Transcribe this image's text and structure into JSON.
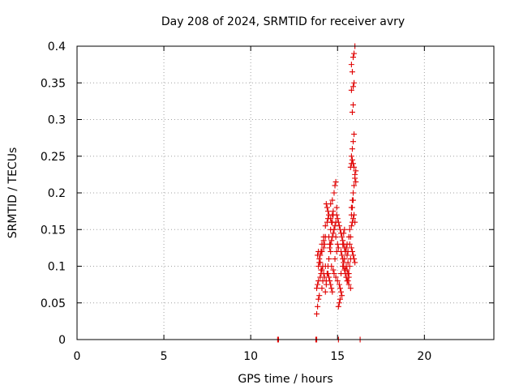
{
  "chart_data": {
    "type": "scatter",
    "title": "Day 208 of 2024, SRMTID for receiver avry",
    "xlabel": "GPS time / hours",
    "ylabel": "SRMTID / TECUs",
    "xlim": [
      0,
      24
    ],
    "ylim": [
      0,
      0.4
    ],
    "x_ticks": [
      0,
      5,
      10,
      15,
      20
    ],
    "y_ticks": [
      0,
      0.05,
      0.1,
      0.15,
      0.2,
      0.25,
      0.3,
      0.35,
      0.4
    ],
    "x_tick_labels": [
      "0",
      "5",
      "10",
      "15",
      "20"
    ],
    "y_tick_labels": [
      "0",
      "0.05",
      "0.1",
      "0.15",
      "0.2",
      "0.25",
      "0.3",
      "0.35",
      "0.4"
    ],
    "grid": true,
    "marker": "+",
    "marker_color": "#e00000",
    "series": [
      {
        "x": [
          11.55,
          11.6,
          13.75,
          13.8,
          15.05,
          16.3,
          13.8,
          13.85,
          13.9,
          13.95,
          13.8,
          13.85,
          13.9,
          14.0,
          14.05,
          14.1,
          14.15,
          14.0,
          13.95,
          13.85,
          14.1,
          14.2,
          14.25,
          14.3,
          14.2,
          14.15,
          14.1,
          14.3,
          14.35,
          14.25,
          14.05,
          14.0,
          13.9,
          14.2,
          14.3,
          14.4,
          14.45,
          14.5,
          14.55,
          14.6,
          14.5,
          14.45,
          14.4,
          14.35,
          14.6,
          14.65,
          14.7,
          14.75,
          14.6,
          14.7,
          14.8,
          14.85,
          14.9,
          14.95,
          14.75,
          14.7,
          14.8,
          14.9,
          15.0,
          15.05,
          14.95,
          14.85,
          14.65,
          14.75,
          14.8,
          14.9,
          15.0,
          15.1,
          15.15,
          15.2,
          15.25,
          15.1,
          15.05,
          15.15,
          15.2,
          15.3,
          15.35,
          15.4,
          15.45,
          15.3,
          15.25,
          15.35,
          15.4,
          15.5,
          15.55,
          15.6,
          15.45,
          15.5,
          15.6,
          15.65,
          15.7,
          15.75,
          15.6,
          15.55,
          15.65,
          15.7,
          15.8,
          15.85,
          15.9,
          15.95,
          16.0,
          15.8,
          15.85,
          15.9,
          15.95,
          16.0,
          16.05,
          15.75,
          15.7,
          15.8,
          15.85,
          15.9,
          15.95,
          16.0,
          15.65,
          15.75,
          15.8,
          15.85,
          15.9,
          15.95,
          15.85,
          15.9,
          15.8,
          15.9,
          15.95,
          15.85,
          15.8,
          15.9,
          15.95,
          16.0,
          15.75,
          15.8,
          15.85,
          15.9,
          15.95,
          16.0,
          16.05,
          15.9,
          15.85,
          15.8,
          14.55,
          14.6,
          14.65,
          14.7,
          14.75,
          14.8,
          14.85,
          14.9,
          14.6,
          14.5,
          14.45,
          14.4,
          14.35,
          14.3,
          14.2,
          14.1,
          14.05,
          14.0,
          13.95,
          13.9,
          14.45,
          14.5,
          14.55,
          14.6,
          14.65,
          14.7,
          15.2,
          15.25,
          15.3,
          15.35,
          15.4,
          15.45,
          15.5,
          15.55,
          15.2,
          15.15,
          15.1,
          15.05,
          15.0,
          14.95,
          15.3,
          15.35,
          15.4,
          15.45,
          15.5,
          15.55,
          15.6,
          15.65
        ],
        "y": [
          0,
          0,
          0,
          0,
          0,
          0,
          0.035,
          0.045,
          0.055,
          0.06,
          0.07,
          0.075,
          0.08,
          0.085,
          0.09,
          0.095,
          0.1,
          0.105,
          0.11,
          0.115,
          0.12,
          0.125,
          0.13,
          0.1,
          0.09,
          0.08,
          0.07,
          0.065,
          0.075,
          0.085,
          0.095,
          0.105,
          0.12,
          0.14,
          0.155,
          0.16,
          0.165,
          0.14,
          0.13,
          0.12,
          0.11,
          0.1,
          0.09,
          0.08,
          0.15,
          0.16,
          0.17,
          0.175,
          0.185,
          0.19,
          0.2,
          0.21,
          0.215,
          0.18,
          0.17,
          0.16,
          0.15,
          0.14,
          0.13,
          0.125,
          0.12,
          0.11,
          0.1,
          0.095,
          0.09,
          0.085,
          0.08,
          0.075,
          0.07,
          0.065,
          0.06,
          0.05,
          0.045,
          0.055,
          0.09,
          0.1,
          0.105,
          0.11,
          0.12,
          0.13,
          0.14,
          0.145,
          0.15,
          0.125,
          0.115,
          0.105,
          0.095,
          0.085,
          0.08,
          0.09,
          0.1,
          0.11,
          0.12,
          0.13,
          0.14,
          0.15,
          0.155,
          0.16,
          0.165,
          0.17,
          0.16,
          0.18,
          0.19,
          0.2,
          0.21,
          0.22,
          0.23,
          0.14,
          0.13,
          0.125,
          0.12,
          0.115,
          0.11,
          0.105,
          0.075,
          0.07,
          0.25,
          0.26,
          0.27,
          0.28,
          0.31,
          0.32,
          0.34,
          0.345,
          0.35,
          0.365,
          0.375,
          0.385,
          0.39,
          0.4,
          0.235,
          0.24,
          0.245,
          0.24,
          0.235,
          0.225,
          0.215,
          0.19,
          0.18,
          0.17,
          0.125,
          0.13,
          0.135,
          0.14,
          0.145,
          0.15,
          0.155,
          0.16,
          0.165,
          0.17,
          0.175,
          0.18,
          0.185,
          0.14,
          0.135,
          0.13,
          0.12,
          0.115,
          0.105,
          0.1,
          0.09,
          0.085,
          0.08,
          0.075,
          0.07,
          0.065,
          0.12,
          0.115,
          0.11,
          0.1,
          0.095,
          0.09,
          0.085,
          0.08,
          0.145,
          0.15,
          0.155,
          0.16,
          0.165,
          0.17,
          0.135,
          0.13,
          0.125,
          0.12,
          0.1,
          0.095,
          0.09,
          0.085
        ]
      }
    ]
  }
}
